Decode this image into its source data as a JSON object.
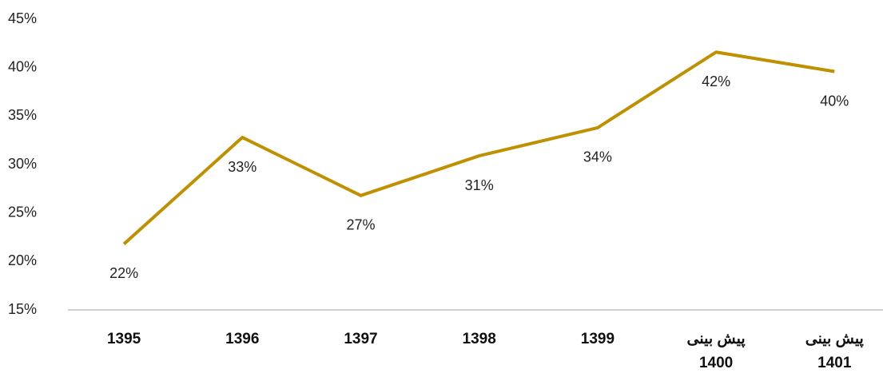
{
  "chart_data": {
    "type": "line",
    "categories": [
      "1395",
      "1396",
      "1397",
      "1398",
      "1399",
      "پیش بینی 1400",
      "پیش بینی 1401"
    ],
    "values": [
      21.8,
      32.8,
      26.8,
      30.9,
      33.8,
      41.6,
      39.6
    ],
    "value_labels": [
      "22%",
      "33%",
      "27%",
      "31%",
      "34%",
      "42%",
      "40%"
    ],
    "color": "#bf9000",
    "ylim": [
      15,
      45
    ],
    "yticks": [
      {
        "value": 15,
        "label": "15%"
      },
      {
        "value": 20,
        "label": "20%"
      },
      {
        "value": 25,
        "label": "25%"
      },
      {
        "value": 30,
        "label": "30%"
      },
      {
        "value": 35,
        "label": "35%"
      },
      {
        "value": 40,
        "label": "40%"
      },
      {
        "value": 45,
        "label": "45%"
      }
    ],
    "grid": false
  }
}
